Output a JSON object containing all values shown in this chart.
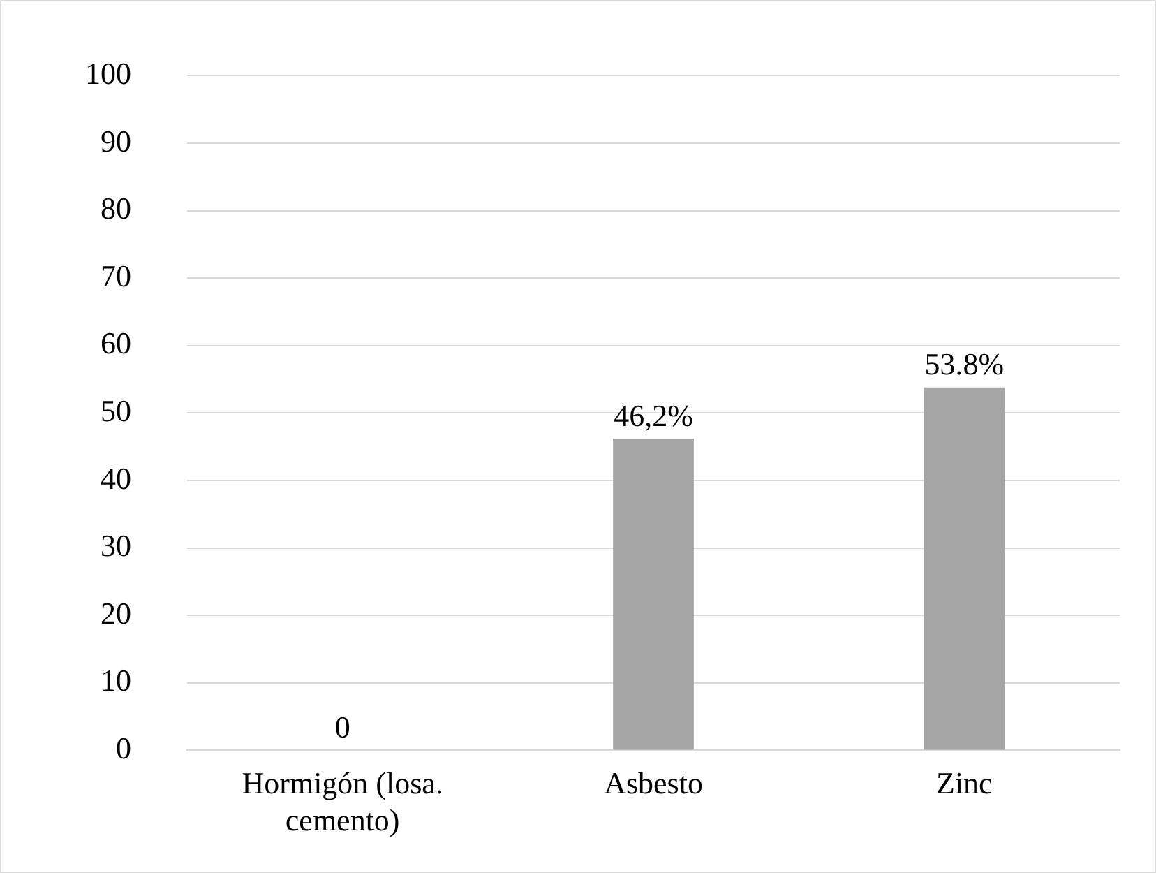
{
  "chart_data": {
    "type": "bar",
    "categories": [
      "Hormigón (losa. cemento)",
      "Asbesto",
      "Zinc"
    ],
    "values": [
      0,
      46.2,
      53.8
    ],
    "color": "#a5a5a5",
    "value_labels": [
      "0",
      "46,2%",
      "53.8%"
    ],
    "ylim": [
      0,
      100
    ],
    "yticks": [
      0,
      10,
      20,
      30,
      40,
      50,
      60,
      70,
      80,
      90,
      100
    ],
    "grid": "y",
    "legend": false
  }
}
